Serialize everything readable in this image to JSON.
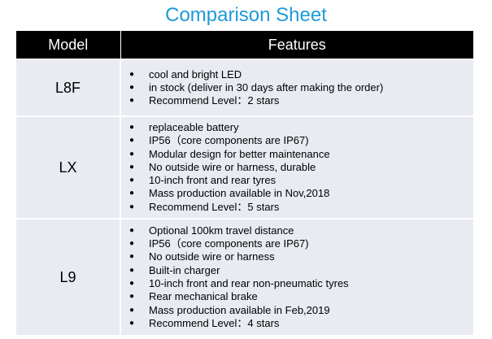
{
  "title": "Comparison Sheet",
  "header": {
    "model": "Model",
    "features": "Features"
  },
  "rows": [
    {
      "model": "L8F",
      "features": [
        "cool and bright LED",
        "in stock (deliver in 30 days after making the order)",
        "Recommend Level：2 stars"
      ]
    },
    {
      "model": "LX",
      "features": [
        "replaceable battery",
        "IP56（core components are IP67)",
        "Modular design for better maintenance",
        "No outside wire or harness, durable",
        "10-inch front and rear tyres",
        "Mass production available in Nov,2018",
        "Recommend Level：5 stars"
      ]
    },
    {
      "model": "L9",
      "features": [
        "Optional 100km travel distance",
        "IP56（core components are IP67)",
        "No outside wire or harness",
        "Built-in charger",
        "10-inch front and rear non-pneumatic tyres",
        "Rear mechanical brake",
        "Mass production available in Feb,2019",
        "Recommend Level：4 stars"
      ]
    }
  ]
}
